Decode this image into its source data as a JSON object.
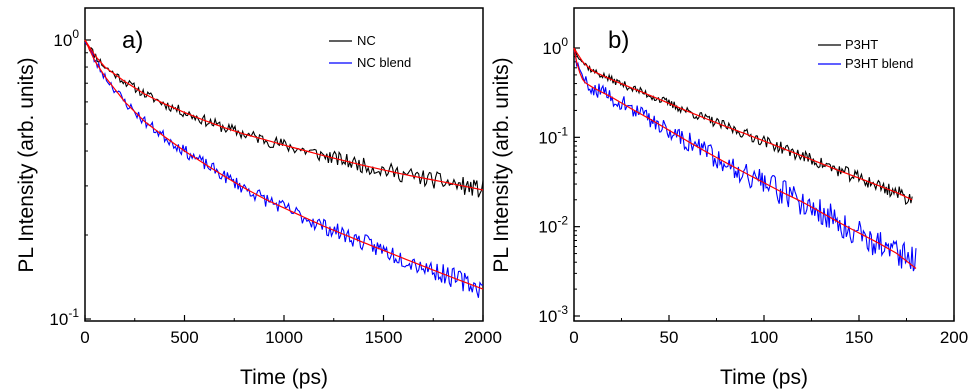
{
  "chart_data": [
    {
      "type": "line",
      "panel_label": "a)",
      "xlabel": "Time (ps)",
      "ylabel": "PL Intensity (arb. units)",
      "xlim": [
        0,
        2000
      ],
      "ylim": [
        0.1,
        1.1
      ],
      "yscale": "log",
      "x_ticks": [
        0,
        500,
        1000,
        1500,
        2000
      ],
      "x_tick_labels": [
        "0",
        "500",
        "1000",
        "1500",
        "2000"
      ],
      "y_tick_labels": [
        {
          "value": 1,
          "base": "10",
          "exp": "0"
        },
        {
          "value": 0.1,
          "base": "10",
          "exp": "-1"
        }
      ],
      "legend_position": "top-right",
      "grid": false,
      "series": [
        {
          "name": "NC",
          "color": "#000000",
          "noise": 0.035,
          "seed": 11,
          "x": [
            0,
            50,
            100,
            200,
            300,
            400,
            500,
            600,
            700,
            800,
            900,
            1000,
            1200,
            1400,
            1600,
            1800,
            2000
          ],
          "values": [
            1.0,
            0.88,
            0.8,
            0.71,
            0.64,
            0.59,
            0.55,
            0.515,
            0.485,
            0.46,
            0.44,
            0.42,
            0.385,
            0.355,
            0.33,
            0.31,
            0.29
          ]
        },
        {
          "name": "NC blend",
          "color": "#0000ff",
          "noise": 0.04,
          "seed": 23,
          "x": [
            0,
            50,
            100,
            200,
            300,
            400,
            500,
            600,
            700,
            800,
            900,
            1000,
            1200,
            1400,
            1600,
            1800,
            2000
          ],
          "values": [
            1.0,
            0.84,
            0.74,
            0.6,
            0.51,
            0.45,
            0.4,
            0.36,
            0.325,
            0.295,
            0.27,
            0.25,
            0.215,
            0.188,
            0.165,
            0.145,
            0.128
          ]
        }
      ],
      "fits": [
        {
          "color": "#ff0000",
          "x": [
            0,
            50,
            100,
            200,
            300,
            400,
            500,
            600,
            700,
            800,
            900,
            1000,
            1200,
            1400,
            1600,
            1800,
            2000
          ],
          "values": [
            1.0,
            0.88,
            0.8,
            0.71,
            0.64,
            0.59,
            0.55,
            0.515,
            0.485,
            0.46,
            0.44,
            0.42,
            0.385,
            0.355,
            0.33,
            0.31,
            0.29
          ]
        },
        {
          "color": "#ff0000",
          "x": [
            0,
            50,
            100,
            200,
            300,
            400,
            500,
            600,
            700,
            800,
            900,
            1000,
            1200,
            1400,
            1600,
            1800,
            2000
          ],
          "values": [
            1.0,
            0.84,
            0.74,
            0.6,
            0.51,
            0.45,
            0.4,
            0.36,
            0.325,
            0.295,
            0.27,
            0.25,
            0.215,
            0.188,
            0.165,
            0.145,
            0.128
          ]
        }
      ]
    },
    {
      "type": "line",
      "panel_label": "b)",
      "xlabel": "Time (ps)",
      "ylabel": "PL Intensity (arb. units)",
      "xlim": [
        0,
        200
      ],
      "ylim": [
        0.001,
        1.5
      ],
      "yscale": "log",
      "x_ticks": [
        0,
        50,
        100,
        150,
        200
      ],
      "x_tick_labels": [
        "0",
        "50",
        "100",
        "150",
        "200"
      ],
      "y_tick_labels": [
        {
          "value": 1,
          "base": "10",
          "exp": "0"
        },
        {
          "value": 0.1,
          "base": "10",
          "exp": "-1"
        },
        {
          "value": 0.01,
          "base": "10",
          "exp": "-2"
        },
        {
          "value": 0.001,
          "base": "10",
          "exp": "-3"
        }
      ],
      "legend_position": "top-right",
      "grid": false,
      "series": [
        {
          "name": "P3HT",
          "color": "#000000",
          "noise": 0.09,
          "seed": 37,
          "x": [
            0,
            2,
            5,
            10,
            20,
            30,
            40,
            50,
            60,
            70,
            80,
            90,
            100,
            110,
            120,
            130,
            140,
            150,
            160,
            170,
            178
          ],
          "values": [
            1.0,
            0.85,
            0.68,
            0.55,
            0.44,
            0.36,
            0.295,
            0.24,
            0.195,
            0.16,
            0.132,
            0.11,
            0.091,
            0.075,
            0.062,
            0.051,
            0.042,
            0.035,
            0.029,
            0.024,
            0.02
          ]
        },
        {
          "name": "P3HT blend",
          "color": "#0000ff",
          "noise": 0.2,
          "seed": 59,
          "x": [
            0,
            2,
            5,
            10,
            20,
            30,
            40,
            50,
            60,
            70,
            80,
            90,
            100,
            110,
            120,
            130,
            140,
            150,
            160,
            170,
            180
          ],
          "values": [
            1.0,
            0.6,
            0.42,
            0.36,
            0.28,
            0.21,
            0.16,
            0.12,
            0.09,
            0.068,
            0.052,
            0.04,
            0.031,
            0.024,
            0.019,
            0.0145,
            0.011,
            0.0085,
            0.0066,
            0.005,
            0.0042
          ]
        }
      ],
      "fits": [
        {
          "color": "#ff0000",
          "x": [
            0,
            2,
            5,
            10,
            20,
            30,
            40,
            50,
            60,
            70,
            80,
            90,
            100,
            110,
            120,
            130,
            140,
            150,
            160,
            170,
            178
          ],
          "values": [
            1.0,
            0.85,
            0.68,
            0.55,
            0.44,
            0.36,
            0.295,
            0.24,
            0.195,
            0.16,
            0.132,
            0.11,
            0.091,
            0.075,
            0.062,
            0.051,
            0.042,
            0.035,
            0.029,
            0.024,
            0.02
          ]
        },
        {
          "color": "#ff0000",
          "x": [
            0,
            2,
            5,
            10,
            20,
            30,
            40,
            50,
            60,
            70,
            80,
            90,
            100,
            110,
            120,
            130,
            140,
            150,
            160,
            170,
            180
          ],
          "values": [
            1.0,
            0.6,
            0.42,
            0.36,
            0.28,
            0.21,
            0.16,
            0.12,
            0.09,
            0.068,
            0.052,
            0.04,
            0.031,
            0.024,
            0.019,
            0.0145,
            0.011,
            0.0085,
            0.0066,
            0.005,
            0.0034
          ]
        }
      ]
    }
  ]
}
